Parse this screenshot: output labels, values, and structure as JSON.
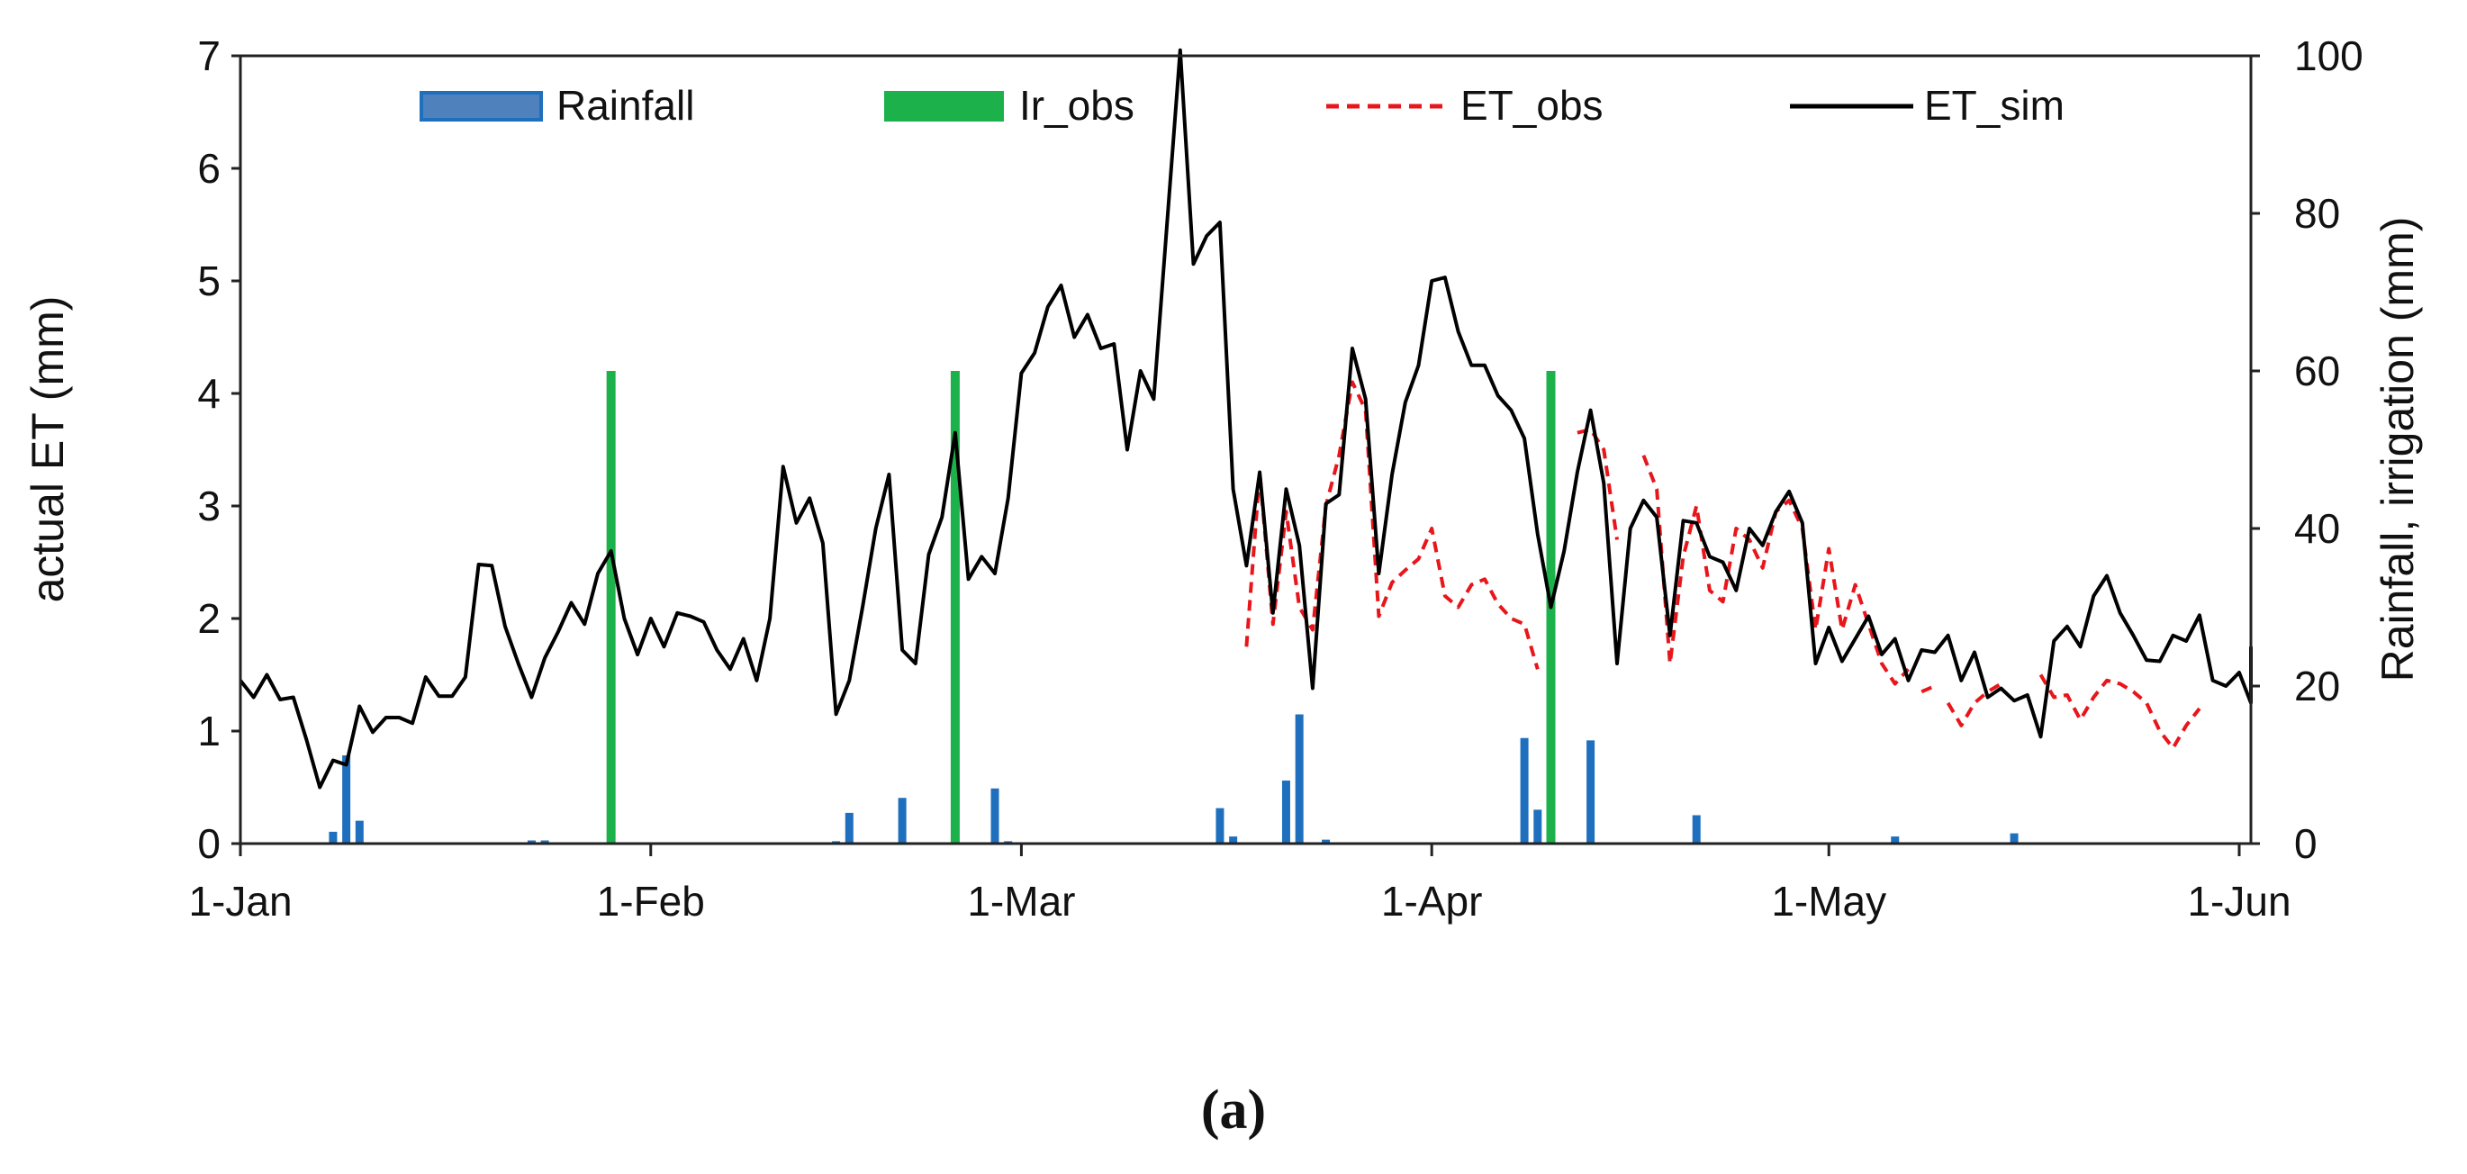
{
  "chart_data": {
    "type": "line",
    "panel_label": "(a)",
    "x_axis": {
      "type": "date",
      "range": [
        "2017-01-01",
        "2017-06-01"
      ],
      "tick_dates": [
        "2017-01-01",
        "2017-02-01",
        "2017-03-01",
        "2017-04-01",
        "2017-05-01",
        "2017-06-01"
      ],
      "tick_labels": [
        "1-Jan",
        "1-Feb",
        "1-Mar",
        "1-Apr",
        "1-May",
        "1-Jun"
      ]
    },
    "y_left": {
      "label": "actual ET  (mm)",
      "range": [
        0,
        7
      ],
      "ticks": [
        0,
        1,
        2,
        3,
        4,
        5,
        6,
        7
      ]
    },
    "y_right": {
      "label": "Rainfall, irrigation (mm)",
      "range": [
        0,
        100
      ],
      "ticks": [
        0,
        20,
        40,
        60,
        80,
        100
      ]
    },
    "grid": false,
    "legend": {
      "position": "top",
      "items": [
        {
          "label": "Rainfall",
          "kind": "bar",
          "color": "#1f6fbf"
        },
        {
          "label": "Ir_obs",
          "kind": "bar",
          "color": "#1db14b"
        },
        {
          "label": "ET_obs",
          "kind": "dashed-line",
          "color": "#e8161b"
        },
        {
          "label": "ET_sim",
          "kind": "line",
          "color": "#000000"
        }
      ]
    },
    "series": [
      {
        "name": "ET_sim",
        "axis": "left",
        "color": "#000000",
        "style": "solid",
        "points": [
          [
            "2017-01-01",
            1.45
          ],
          [
            "2017-01-02",
            1.3
          ],
          [
            "2017-01-03",
            1.5
          ],
          [
            "2017-01-04",
            1.28
          ],
          [
            "2017-01-05",
            1.3
          ],
          [
            "2017-01-06",
            0.92
          ],
          [
            "2017-01-07",
            0.5
          ],
          [
            "2017-01-08",
            0.74
          ],
          [
            "2017-01-09",
            0.7
          ],
          [
            "2017-01-10",
            1.22
          ],
          [
            "2017-01-11",
            0.99
          ],
          [
            "2017-01-12",
            1.12
          ],
          [
            "2017-01-13",
            1.12
          ],
          [
            "2017-01-14",
            1.07
          ],
          [
            "2017-01-15",
            1.48
          ],
          [
            "2017-01-16",
            1.31
          ],
          [
            "2017-01-17",
            1.31
          ],
          [
            "2017-01-18",
            1.48
          ],
          [
            "2017-01-19",
            2.48
          ],
          [
            "2017-01-20",
            2.47
          ],
          [
            "2017-01-21",
            1.93
          ],
          [
            "2017-01-22",
            1.6
          ],
          [
            "2017-01-23",
            1.3
          ],
          [
            "2017-01-24",
            1.65
          ],
          [
            "2017-01-25",
            1.88
          ],
          [
            "2017-01-26",
            2.14
          ],
          [
            "2017-01-27",
            1.95
          ],
          [
            "2017-01-28",
            2.4
          ],
          [
            "2017-01-29",
            2.6
          ],
          [
            "2017-01-30",
            2.0
          ],
          [
            "2017-01-31",
            1.68
          ],
          [
            "2017-02-01",
            2.0
          ],
          [
            "2017-02-02",
            1.75
          ],
          [
            "2017-02-03",
            2.05
          ],
          [
            "2017-02-04",
            2.02
          ],
          [
            "2017-02-05",
            1.97
          ],
          [
            "2017-02-06",
            1.72
          ],
          [
            "2017-02-07",
            1.55
          ],
          [
            "2017-02-08",
            1.82
          ],
          [
            "2017-02-09",
            1.45
          ],
          [
            "2017-02-10",
            2.0
          ],
          [
            "2017-02-11",
            3.35
          ],
          [
            "2017-02-12",
            2.85
          ],
          [
            "2017-02-13",
            3.07
          ],
          [
            "2017-02-14",
            2.67
          ],
          [
            "2017-02-15",
            1.15
          ],
          [
            "2017-02-16",
            1.45
          ],
          [
            "2017-02-17",
            2.1
          ],
          [
            "2017-02-18",
            2.8
          ],
          [
            "2017-02-19",
            3.28
          ],
          [
            "2017-02-20",
            1.72
          ],
          [
            "2017-02-21",
            1.6
          ],
          [
            "2017-02-22",
            2.57
          ],
          [
            "2017-02-23",
            2.9
          ],
          [
            "2017-02-24",
            3.65
          ],
          [
            "2017-02-25",
            2.35
          ],
          [
            "2017-02-26",
            2.55
          ],
          [
            "2017-02-27",
            2.4
          ],
          [
            "2017-02-28",
            3.07
          ],
          [
            "2017-03-01",
            4.18
          ],
          [
            "2017-03-02",
            4.36
          ],
          [
            "2017-03-03",
            4.77
          ],
          [
            "2017-03-04",
            4.96
          ],
          [
            "2017-03-05",
            4.5
          ],
          [
            "2017-03-06",
            4.7
          ],
          [
            "2017-03-07",
            4.4
          ],
          [
            "2017-03-08",
            4.44
          ],
          [
            "2017-03-09",
            3.5
          ],
          [
            "2017-03-10",
            4.2
          ],
          [
            "2017-03-11",
            3.95
          ],
          [
            "2017-03-12",
            5.5
          ],
          [
            "2017-03-13",
            7.05
          ],
          [
            "2017-03-14",
            5.15
          ],
          [
            "2017-03-15",
            5.4
          ],
          [
            "2017-03-16",
            5.52
          ],
          [
            "2017-03-17",
            3.15
          ],
          [
            "2017-03-18",
            2.47
          ],
          [
            "2017-03-19",
            3.3
          ],
          [
            "2017-03-20",
            2.05
          ],
          [
            "2017-03-21",
            3.15
          ],
          [
            "2017-03-22",
            2.65
          ],
          [
            "2017-03-23",
            1.38
          ],
          [
            "2017-03-24",
            3.02
          ],
          [
            "2017-03-25",
            3.1
          ],
          [
            "2017-03-26",
            4.4
          ],
          [
            "2017-03-27",
            3.95
          ],
          [
            "2017-03-28",
            2.4
          ],
          [
            "2017-03-29",
            3.28
          ],
          [
            "2017-03-30",
            3.92
          ],
          [
            "2017-03-31",
            4.25
          ],
          [
            "2017-04-01",
            5.0
          ],
          [
            "2017-04-02",
            5.03
          ],
          [
            "2017-04-03",
            4.55
          ],
          [
            "2017-04-04",
            4.25
          ],
          [
            "2017-04-05",
            4.25
          ],
          [
            "2017-04-06",
            3.98
          ],
          [
            "2017-04-07",
            3.85
          ],
          [
            "2017-04-08",
            3.6
          ],
          [
            "2017-04-09",
            2.75
          ],
          [
            "2017-04-10",
            2.1
          ],
          [
            "2017-04-11",
            2.6
          ],
          [
            "2017-04-12",
            3.3
          ],
          [
            "2017-04-13",
            3.85
          ],
          [
            "2017-04-14",
            3.2
          ],
          [
            "2017-04-15",
            1.6
          ],
          [
            "2017-04-16",
            2.8
          ],
          [
            "2017-04-17",
            3.05
          ],
          [
            "2017-04-18",
            2.9
          ],
          [
            "2017-04-19",
            1.85
          ],
          [
            "2017-04-20",
            2.87
          ],
          [
            "2017-04-21",
            2.85
          ],
          [
            "2017-04-22",
            2.55
          ],
          [
            "2017-04-23",
            2.5
          ],
          [
            "2017-04-24",
            2.25
          ],
          [
            "2017-04-25",
            2.8
          ],
          [
            "2017-04-26",
            2.65
          ],
          [
            "2017-04-27",
            2.95
          ],
          [
            "2017-04-28",
            3.13
          ],
          [
            "2017-04-29",
            2.85
          ],
          [
            "2017-04-30",
            1.6
          ],
          [
            "2017-05-01",
            1.92
          ],
          [
            "2017-05-02",
            1.62
          ],
          [
            "2017-05-03",
            1.82
          ],
          [
            "2017-05-04",
            2.02
          ],
          [
            "2017-05-05",
            1.68
          ],
          [
            "2017-05-06",
            1.82
          ],
          [
            "2017-05-07",
            1.45
          ],
          [
            "2017-05-08",
            1.72
          ],
          [
            "2017-05-09",
            1.7
          ],
          [
            "2017-05-10",
            1.85
          ],
          [
            "2017-05-11",
            1.45
          ],
          [
            "2017-05-12",
            1.7
          ],
          [
            "2017-05-13",
            1.3
          ],
          [
            "2017-05-14",
            1.38
          ],
          [
            "2017-05-15",
            1.27
          ],
          [
            "2017-05-16",
            1.32
          ],
          [
            "2017-05-17",
            0.95
          ],
          [
            "2017-05-18",
            1.8
          ],
          [
            "2017-05-19",
            1.93
          ],
          [
            "2017-05-20",
            1.75
          ],
          [
            "2017-05-21",
            2.2
          ],
          [
            "2017-05-22",
            2.38
          ],
          [
            "2017-05-23",
            2.05
          ],
          [
            "2017-05-24",
            1.85
          ],
          [
            "2017-05-25",
            1.63
          ],
          [
            "2017-05-26",
            1.62
          ],
          [
            "2017-05-27",
            1.85
          ],
          [
            "2017-05-28",
            1.8
          ],
          [
            "2017-05-29",
            2.03
          ],
          [
            "2017-05-30",
            1.45
          ],
          [
            "2017-05-31",
            1.4
          ],
          [
            "2017-06-01",
            1.52
          ],
          [
            "2017-06-02",
            1.25
          ],
          [
            "2017-06-03",
            1.75
          ]
        ]
      },
      {
        "name": "ET_obs",
        "axis": "left",
        "color": "#e8161b",
        "style": "dashed",
        "segments": [
          [
            [
              "2017-03-18",
              1.75
            ],
            [
              "2017-03-19",
              3.3
            ],
            [
              "2017-03-20",
              1.95
            ],
            [
              "2017-03-21",
              2.95
            ],
            [
              "2017-03-22",
              2.1
            ],
            [
              "2017-03-23",
              1.9
            ],
            [
              "2017-03-24",
              3.0
            ],
            [
              "2017-03-25",
              3.45
            ],
            [
              "2017-03-26",
              4.1
            ],
            [
              "2017-03-27",
              3.85
            ],
            [
              "2017-03-28",
              2.02
            ],
            [
              "2017-03-29",
              2.32
            ],
            [
              "2017-03-30",
              2.43
            ],
            [
              "2017-03-31",
              2.53
            ],
            [
              "2017-04-01",
              2.8
            ],
            [
              "2017-04-02",
              2.2
            ],
            [
              "2017-04-03",
              2.1
            ],
            [
              "2017-04-04",
              2.3
            ],
            [
              "2017-04-05",
              2.35
            ],
            [
              "2017-04-06",
              2.13
            ],
            [
              "2017-04-07",
              2.0
            ],
            [
              "2017-04-08",
              1.95
            ],
            [
              "2017-04-09",
              1.55
            ]
          ],
          [
            [
              "2017-04-12",
              3.65
            ],
            [
              "2017-04-13",
              3.68
            ],
            [
              "2017-04-14",
              3.5
            ],
            [
              "2017-04-15",
              2.7
            ]
          ],
          [
            [
              "2017-04-17",
              3.45
            ],
            [
              "2017-04-18",
              3.15
            ],
            [
              "2017-04-19",
              1.6
            ],
            [
              "2017-04-20",
              2.55
            ],
            [
              "2017-04-21",
              3.0
            ],
            [
              "2017-04-22",
              2.25
            ],
            [
              "2017-04-23",
              2.15
            ],
            [
              "2017-04-24",
              2.8
            ],
            [
              "2017-04-25",
              2.7
            ],
            [
              "2017-04-26",
              2.45
            ],
            [
              "2017-04-27",
              2.95
            ],
            [
              "2017-04-28",
              3.05
            ],
            [
              "2017-04-29",
              2.8
            ],
            [
              "2017-04-30",
              1.9
            ],
            [
              "2017-05-01",
              2.62
            ],
            [
              "2017-05-02",
              1.9
            ],
            [
              "2017-05-03",
              2.3
            ],
            [
              "2017-05-04",
              1.95
            ],
            [
              "2017-05-05",
              1.6
            ],
            [
              "2017-05-06",
              1.42
            ],
            [
              "2017-05-07",
              1.55
            ]
          ],
          [
            [
              "2017-05-08",
              1.35
            ],
            [
              "2017-05-09",
              1.4
            ]
          ],
          [
            [
              "2017-05-10",
              1.25
            ],
            [
              "2017-05-11",
              1.05
            ],
            [
              "2017-05-12",
              1.25
            ],
            [
              "2017-05-13",
              1.35
            ],
            [
              "2017-05-14",
              1.42
            ]
          ],
          [
            [
              "2017-05-17",
              1.5
            ],
            [
              "2017-05-18",
              1.3
            ],
            [
              "2017-05-19",
              1.32
            ],
            [
              "2017-05-20",
              1.1
            ],
            [
              "2017-05-21",
              1.3
            ],
            [
              "2017-05-22",
              1.45
            ],
            [
              "2017-05-23",
              1.42
            ],
            [
              "2017-05-24",
              1.35
            ],
            [
              "2017-05-25",
              1.25
            ],
            [
              "2017-05-26",
              1.0
            ],
            [
              "2017-05-27",
              0.85
            ],
            [
              "2017-05-28",
              1.05
            ],
            [
              "2017-05-29",
              1.2
            ]
          ]
        ]
      },
      {
        "name": "Rainfall",
        "axis": "right",
        "kind": "bar",
        "color": "#1f6fbf",
        "points": [
          [
            "2017-01-08",
            1.5
          ],
          [
            "2017-01-09",
            11.2
          ],
          [
            "2017-01-10",
            2.9
          ],
          [
            "2017-01-23",
            0.4
          ],
          [
            "2017-01-24",
            0.4
          ],
          [
            "2017-02-15",
            0.3
          ],
          [
            "2017-02-16",
            3.9
          ],
          [
            "2017-02-20",
            5.8
          ],
          [
            "2017-02-27",
            7.0
          ],
          [
            "2017-02-28",
            0.3
          ],
          [
            "2017-03-16",
            4.5
          ],
          [
            "2017-03-17",
            0.9
          ],
          [
            "2017-03-21",
            8.0
          ],
          [
            "2017-03-22",
            16.4
          ],
          [
            "2017-03-24",
            0.5
          ],
          [
            "2017-04-08",
            13.4
          ],
          [
            "2017-04-09",
            4.3
          ],
          [
            "2017-04-13",
            13.1
          ],
          [
            "2017-04-21",
            3.6
          ],
          [
            "2017-05-06",
            0.9
          ],
          [
            "2017-05-15",
            1.3
          ]
        ]
      },
      {
        "name": "Ir_obs",
        "axis": "right",
        "kind": "bar",
        "color": "#1db14b",
        "points": [
          [
            "2017-01-29",
            60.0
          ],
          [
            "2017-02-24",
            60.0
          ],
          [
            "2017-04-10",
            60.0
          ]
        ]
      }
    ]
  }
}
